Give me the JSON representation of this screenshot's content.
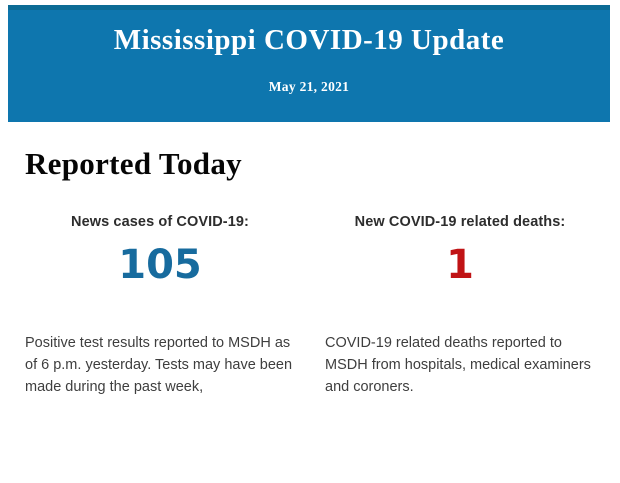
{
  "banner": {
    "title": "Mississippi COVID-19 Update",
    "date": "May 21, 2021",
    "bg_color": "#0e76ae",
    "top_edge_color": "#0c6b95",
    "text_color": "#ffffff"
  },
  "section": {
    "heading": "Reported Today"
  },
  "stats": [
    {
      "label": "News cases of COVID-19:",
      "value": "105",
      "value_color": "#176b9e",
      "description": "Positive test results reported to MSDH as of 6 p.m. yesterday. Tests may have been made during the past week,"
    },
    {
      "label": "New COVID-19 related deaths:",
      "value": "1",
      "value_color": "#c01315",
      "description": "COVID-19 related deaths reported to MSDH from hospitals, medical examiners and coroners."
    }
  ]
}
